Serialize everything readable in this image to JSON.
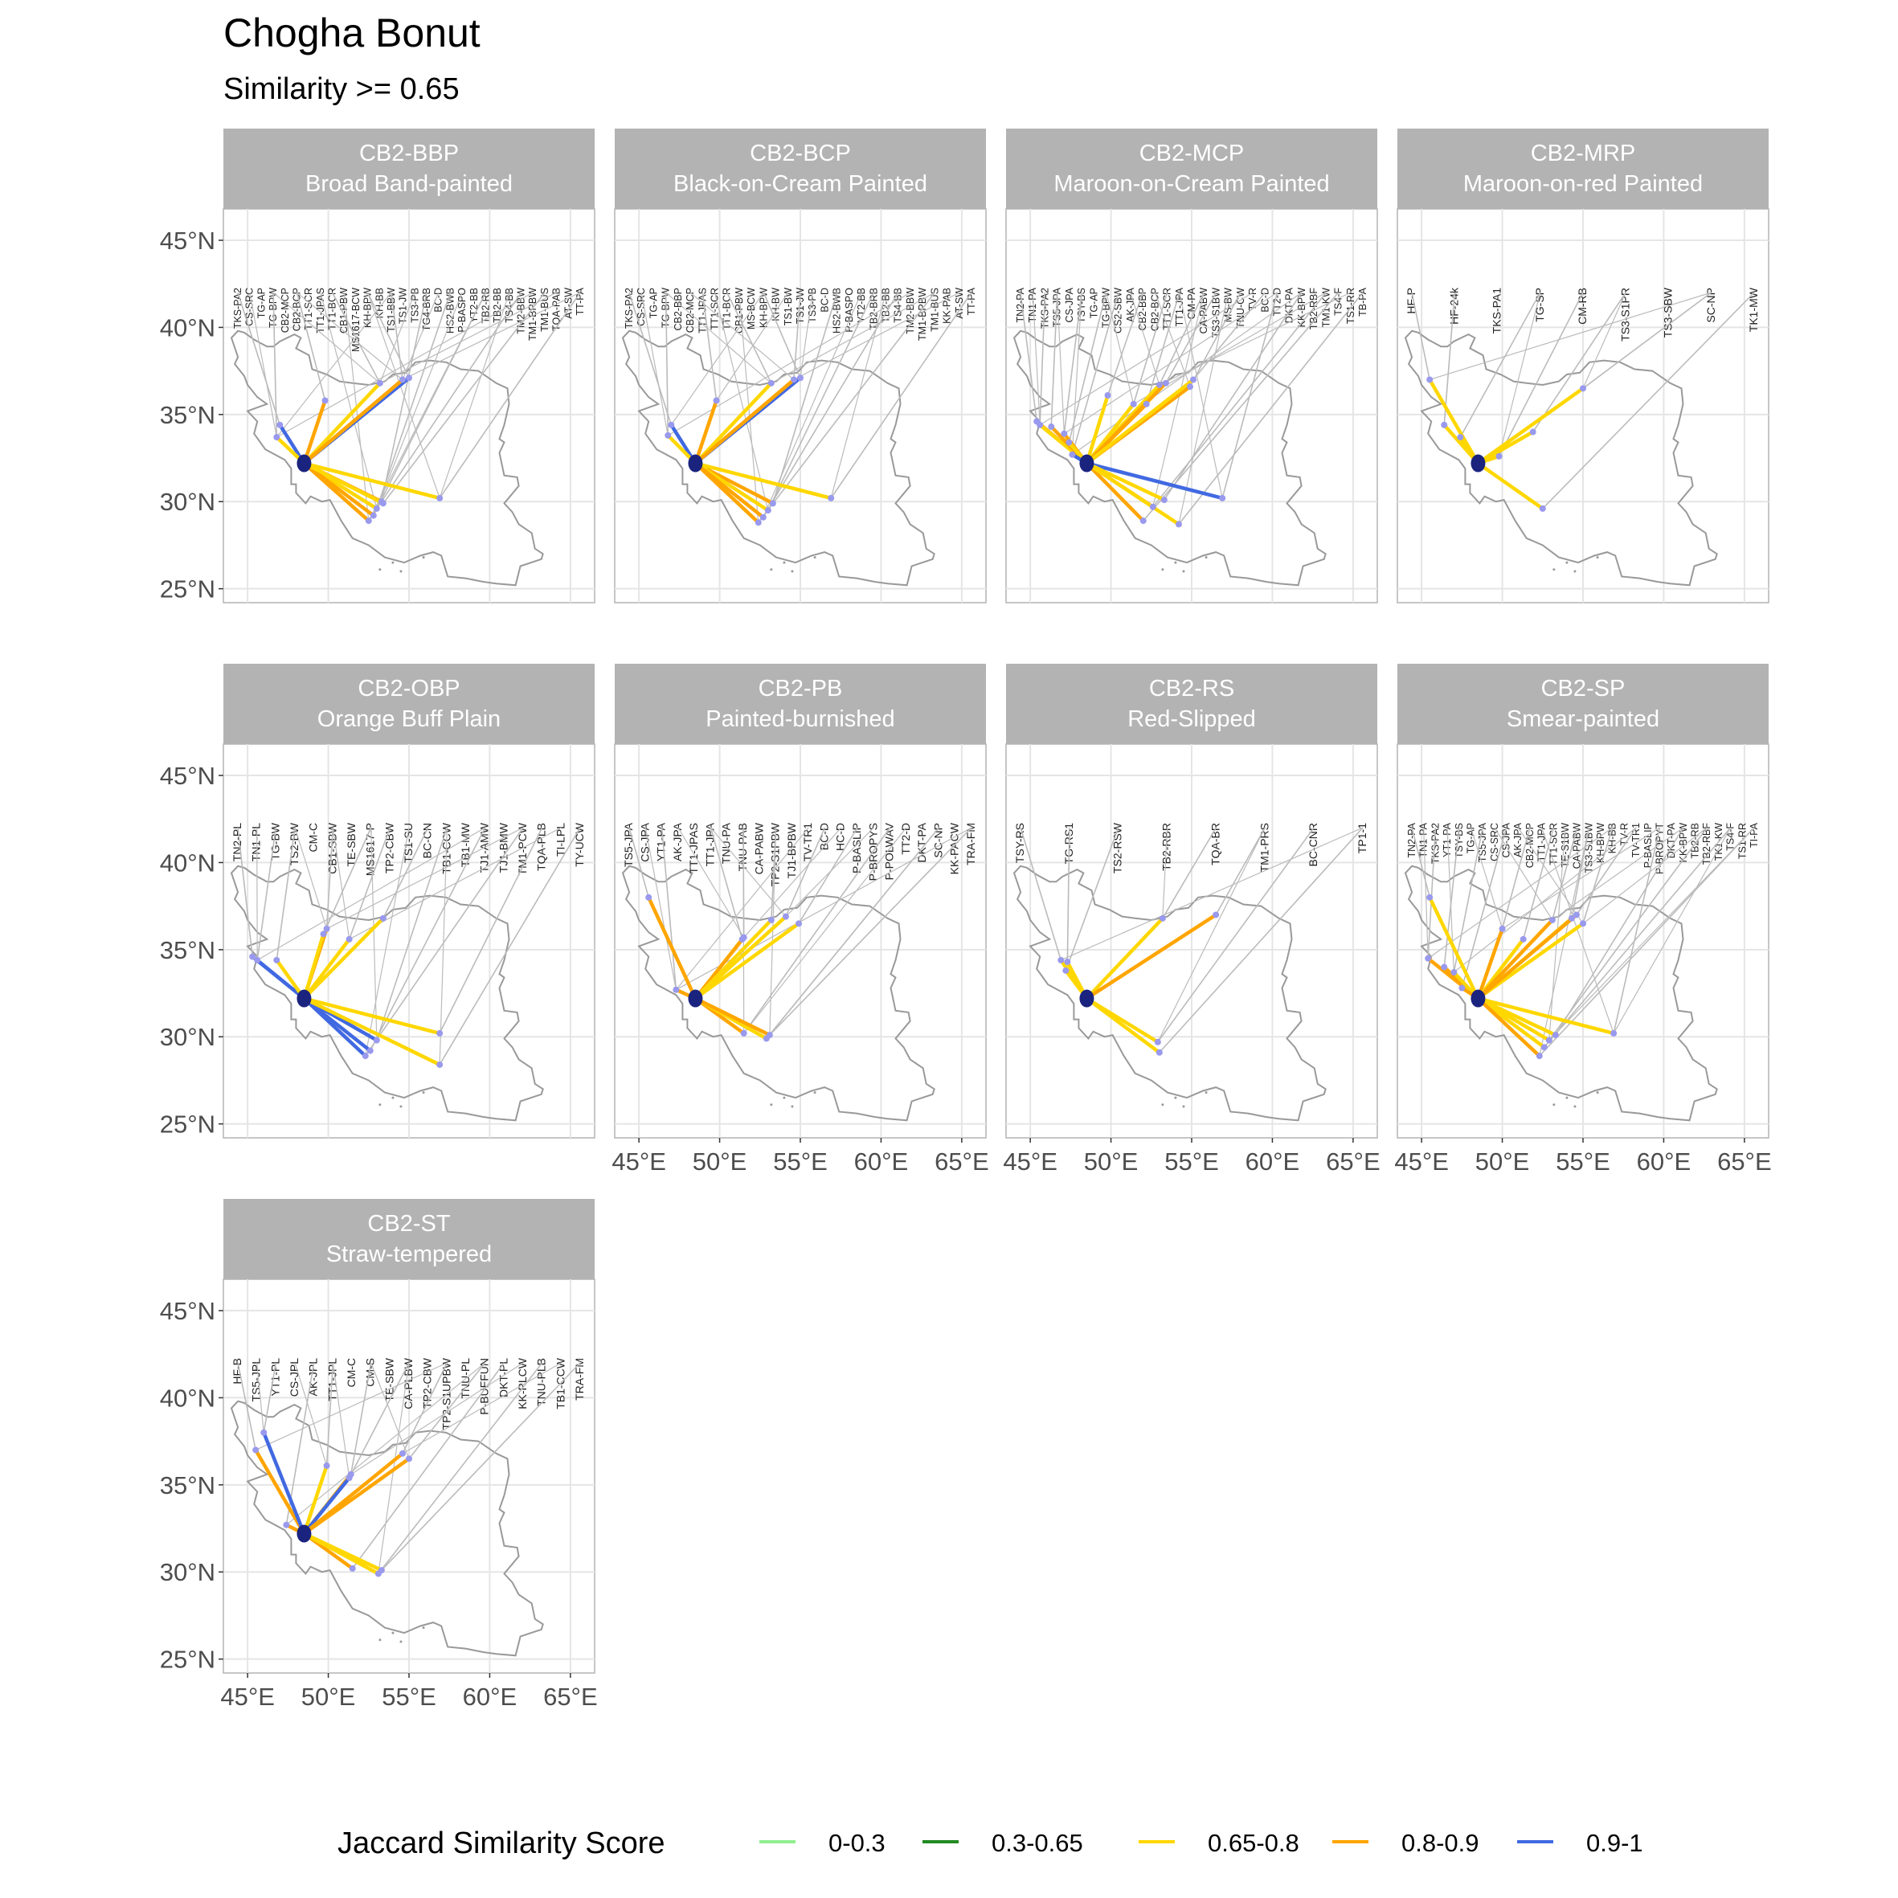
{
  "title": "Chogha Bonut",
  "subtitle": "Similarity >= 0.65",
  "axis": {
    "lon_ticks": [
      {
        "value": 45,
        "label": "45°E"
      },
      {
        "value": 50,
        "label": "50°E"
      },
      {
        "value": 55,
        "label": "55°E"
      },
      {
        "value": 60,
        "label": "60°E"
      },
      {
        "value": 65,
        "label": "65°E"
      }
    ],
    "lat_ticks": [
      {
        "value": 45,
        "label": "45°N"
      },
      {
        "value": 40,
        "label": "40°N"
      },
      {
        "value": 35,
        "label": "35°N"
      },
      {
        "value": 30,
        "label": "30°N"
      },
      {
        "value": 25,
        "label": "25°N"
      }
    ],
    "lon_range": [
      43.5,
      66.5
    ],
    "lat_range": [
      24.2,
      46.8
    ]
  },
  "origin": {
    "name": "Chogha Bonut",
    "lon": 48.5,
    "lat": 32.2
  },
  "legend": {
    "title": "Jaccard Similarity Score",
    "items": [
      {
        "label": "0-0.3",
        "color": "#90EE90"
      },
      {
        "label": "0.3-0.65",
        "color": "#228B22"
      },
      {
        "label": "0.65-0.8",
        "color": "#FFD700"
      },
      {
        "label": "0.8-0.9",
        "color": "#FFA500"
      },
      {
        "label": "0.9-1",
        "color": "#4169E1"
      }
    ]
  },
  "colors": {
    "strip_bg": "#b3b3b3",
    "panel_bg": "#ffffff",
    "grid": "#e5e5e5",
    "outline": "#999999",
    "leader": "#bbbbbb",
    "site": "#9999ee",
    "origin": "#1a237e"
  },
  "chart_data": [
    {
      "code": "CB2-BBP",
      "name": "Broad Band-painted",
      "labels": [
        "TKS-PA2",
        "CS-SRC",
        "TG-AP",
        "TG-BPW",
        "CB2-MCP",
        "CB2-BCP",
        "TT1-SCR",
        "TT1-JPAS",
        "TT1-BCR",
        "CB1-PBW",
        "MS1617-BCW",
        "KH-BPW",
        "KH-BB",
        "TS1-BBW",
        "TS1-JW",
        "TS3-PB",
        "TG4-BRB",
        "BC-D",
        "HS2-BWB",
        "P-BASPO",
        "YT2-BB",
        "TB2-RB",
        "TB2-BB",
        "TS4-BB",
        "TM2-BBW",
        "TM1-BPBW",
        "TM1-BUS",
        "TQA-PAB",
        "AT-SW",
        "TT-PA"
      ],
      "links": [
        {
          "lon": 47.0,
          "lat": 34.4,
          "s": "0.9-1"
        },
        {
          "lon": 46.8,
          "lat": 33.7,
          "s": "0.65-0.8"
        },
        {
          "lon": 49.8,
          "lat": 35.8,
          "s": "0.8-0.9"
        },
        {
          "lon": 53.2,
          "lat": 36.8,
          "s": "0.65-0.8"
        },
        {
          "lon": 55.0,
          "lat": 37.1,
          "s": "0.9-1"
        },
        {
          "lon": 54.6,
          "lat": 37.0,
          "s": "0.8-0.9"
        },
        {
          "lon": 53.3,
          "lat": 30.0,
          "s": "0.8-0.9"
        },
        {
          "lon": 53.0,
          "lat": 29.6,
          "s": "0.65-0.8"
        },
        {
          "lon": 52.8,
          "lat": 29.2,
          "s": "0.8-0.9"
        },
        {
          "lon": 52.5,
          "lat": 28.9,
          "s": "0.8-0.9"
        },
        {
          "lon": 53.4,
          "lat": 29.9,
          "s": "0.65-0.8"
        },
        {
          "lon": 56.9,
          "lat": 30.2,
          "s": "0.65-0.8"
        }
      ]
    },
    {
      "code": "CB2-BCP",
      "name": "Black-on-Cream Painted",
      "labels": [
        "TKS-PA2",
        "CS-SRC",
        "TG-AP",
        "TG-BPW",
        "CB2-BBP",
        "CB2-MCP",
        "TT1-JPAS",
        "TT1-SCR",
        "TT1-BCR",
        "CB1-PBW",
        "MS-BCW",
        "KH-BPW",
        "KH-BW",
        "TS1-BW",
        "TS1-JW",
        "TS3-PB",
        "BC-D",
        "HS2-BWB",
        "P-BASPO",
        "YT2-BB",
        "TB2-BRB",
        "TB2-BB",
        "TS4-BB",
        "TM2-BBW",
        "TM1-BPBW",
        "TM1-BUS",
        "KK-PAB",
        "AT-SW",
        "TT-PA"
      ],
      "links": [
        {
          "lon": 47.0,
          "lat": 34.4,
          "s": "0.9-1"
        },
        {
          "lon": 46.8,
          "lat": 33.8,
          "s": "0.65-0.8"
        },
        {
          "lon": 49.8,
          "lat": 35.8,
          "s": "0.8-0.9"
        },
        {
          "lon": 53.2,
          "lat": 36.8,
          "s": "0.65-0.8"
        },
        {
          "lon": 55.0,
          "lat": 37.1,
          "s": "0.9-1"
        },
        {
          "lon": 54.6,
          "lat": 37.0,
          "s": "0.8-0.9"
        },
        {
          "lon": 53.3,
          "lat": 29.9,
          "s": "0.8-0.9"
        },
        {
          "lon": 53.0,
          "lat": 29.5,
          "s": "0.65-0.8"
        },
        {
          "lon": 52.7,
          "lat": 29.1,
          "s": "0.8-0.9"
        },
        {
          "lon": 52.4,
          "lat": 28.8,
          "s": "0.8-0.9"
        },
        {
          "lon": 56.9,
          "lat": 30.2,
          "s": "0.65-0.8"
        }
      ]
    },
    {
      "code": "CB2-MCP",
      "name": "Maroon-on-Cream Painted",
      "labels": [
        "TN2-PA",
        "TN1-PA",
        "TKS-PA2",
        "TS5-JPA",
        "CS-JPA",
        "TSY-BS",
        "TG-AP",
        "TG-BPW",
        "CS2-SBW",
        "AK-JPA",
        "CB2-BBP",
        "CB2-BCP",
        "TT1-SCR",
        "TT1-JPA",
        "CM-PA",
        "CA-PABW",
        "TS3-S1BW",
        "MS-BW",
        "TNU-CW",
        "TV-R",
        "BC-D",
        "TT2-D",
        "DKT-PA",
        "KK-BPW",
        "TB2-RBF",
        "TM1-KW",
        "TS4-F",
        "TS1-RR",
        "TB-PA"
      ],
      "links": [
        {
          "lon": 45.4,
          "lat": 34.6,
          "s": "0.8-0.9"
        },
        {
          "lon": 45.6,
          "lat": 34.4,
          "s": "0.65-0.8"
        },
        {
          "lon": 46.3,
          "lat": 34.3,
          "s": "0.8-0.9"
        },
        {
          "lon": 47.1,
          "lat": 33.9,
          "s": "0.8-0.9"
        },
        {
          "lon": 47.4,
          "lat": 33.4,
          "s": "0.65-0.8"
        },
        {
          "lon": 47.6,
          "lat": 32.7,
          "s": "0.9-1"
        },
        {
          "lon": 49.8,
          "lat": 36.1,
          "s": "0.65-0.8"
        },
        {
          "lon": 51.4,
          "lat": 35.6,
          "s": "0.65-0.8"
        },
        {
          "lon": 52.2,
          "lat": 35.6,
          "s": "0.8-0.9"
        },
        {
          "lon": 53.0,
          "lat": 36.7,
          "s": "0.65-0.8"
        },
        {
          "lon": 53.4,
          "lat": 36.8,
          "s": "0.8-0.9"
        },
        {
          "lon": 54.9,
          "lat": 36.6,
          "s": "0.8-0.9"
        },
        {
          "lon": 55.1,
          "lat": 37.0,
          "s": "0.65-0.8"
        },
        {
          "lon": 56.9,
          "lat": 30.2,
          "s": "0.9-1"
        },
        {
          "lon": 53.3,
          "lat": 30.1,
          "s": "0.65-0.8"
        },
        {
          "lon": 52.6,
          "lat": 29.7,
          "s": "0.8-0.9"
        },
        {
          "lon": 52.0,
          "lat": 28.9,
          "s": "0.8-0.9"
        },
        {
          "lon": 54.2,
          "lat": 28.7,
          "s": "0.65-0.8"
        }
      ]
    },
    {
      "code": "CB2-MRP",
      "name": "Maroon-on-red Painted",
      "labels": [
        "HF-P",
        "HF-24k",
        "TKS-PA1",
        "TG-SP",
        "CM-RB",
        "TS3-S1PR",
        "TS3-SBW",
        "SC-NP",
        "TK1-MW"
      ],
      "links": [
        {
          "lon": 45.5,
          "lat": 37.0,
          "s": "0.65-0.8"
        },
        {
          "lon": 46.4,
          "lat": 34.4,
          "s": "0.65-0.8"
        },
        {
          "lon": 47.4,
          "lat": 33.7,
          "s": "0.65-0.8"
        },
        {
          "lon": 49.8,
          "lat": 32.6,
          "s": "0.65-0.8"
        },
        {
          "lon": 51.9,
          "lat": 34.0,
          "s": "0.65-0.8"
        },
        {
          "lon": 55.0,
          "lat": 36.5,
          "s": "0.65-0.8"
        },
        {
          "lon": 52.5,
          "lat": 29.6,
          "s": "0.65-0.8"
        }
      ]
    },
    {
      "code": "CB2-OBP",
      "name": "Orange Buff Plain",
      "labels": [
        "TN2-PL",
        "TN1-PL",
        "TG-BW",
        "TS2-BW",
        "CM-C",
        "CB1-SBW",
        "TE-SBW",
        "MS1617-P",
        "TP2-CBW",
        "TS1-SU",
        "BC-CN",
        "TB1-CCW",
        "TB1-MW",
        "TJ1-AMW",
        "TJ1-BMW",
        "TM1-PCW",
        "TQA-PLB",
        "TI-LPL",
        "TY-UCW"
      ],
      "links": [
        {
          "lon": 45.3,
          "lat": 34.6,
          "s": "0.9-1"
        },
        {
          "lon": 45.6,
          "lat": 34.4,
          "s": "0.9-1"
        },
        {
          "lon": 46.8,
          "lat": 34.4,
          "s": "0.65-0.8"
        },
        {
          "lon": 49.9,
          "lat": 36.2,
          "s": "0.8-0.9"
        },
        {
          "lon": 49.7,
          "lat": 35.9,
          "s": "0.65-0.8"
        },
        {
          "lon": 51.3,
          "lat": 35.6,
          "s": "0.65-0.8"
        },
        {
          "lon": 53.4,
          "lat": 36.8,
          "s": "0.65-0.8"
        },
        {
          "lon": 53.0,
          "lat": 29.8,
          "s": "0.9-1"
        },
        {
          "lon": 52.6,
          "lat": 29.2,
          "s": "0.9-1"
        },
        {
          "lon": 52.3,
          "lat": 28.9,
          "s": "0.9-1"
        },
        {
          "lon": 56.9,
          "lat": 30.2,
          "s": "0.65-0.8"
        },
        {
          "lon": 56.9,
          "lat": 28.4,
          "s": "0.65-0.8"
        }
      ]
    },
    {
      "code": "CB2-PB",
      "name": "Painted-burnished",
      "labels": [
        "TS5-JPA",
        "CS-JPA",
        "YT1-PA",
        "AK-JPA",
        "TT1-JPAS",
        "TT1-JPA",
        "TNU-PA",
        "TNU-PAB",
        "CA-PABW",
        "TP2-S1PBW",
        "TJ1-BPBW",
        "TV-TR1",
        "BC-D",
        "HC-D",
        "P-BASLIP",
        "P-BROPYS",
        "P-POLWAV",
        "TT2-D",
        "DKT-PA",
        "SC-NP",
        "KK-PACW",
        "TRA-FM"
      ],
      "links": [
        {
          "lon": 45.6,
          "lat": 38.0,
          "s": "0.8-0.9"
        },
        {
          "lon": 47.3,
          "lat": 32.7,
          "s": "0.8-0.9"
        },
        {
          "lon": 51.4,
          "lat": 35.6,
          "s": "0.65-0.8"
        },
        {
          "lon": 51.5,
          "lat": 35.7,
          "s": "0.8-0.9"
        },
        {
          "lon": 53.2,
          "lat": 36.7,
          "s": "0.65-0.8"
        },
        {
          "lon": 54.1,
          "lat": 36.9,
          "s": "0.65-0.8"
        },
        {
          "lon": 54.9,
          "lat": 36.5,
          "s": "0.65-0.8"
        },
        {
          "lon": 51.5,
          "lat": 30.2,
          "s": "0.8-0.9"
        },
        {
          "lon": 52.9,
          "lat": 29.9,
          "s": "0.65-0.8"
        },
        {
          "lon": 53.1,
          "lat": 30.1,
          "s": "0.8-0.9"
        }
      ]
    },
    {
      "code": "CB2-RS",
      "name": "Red-Slipped",
      "labels": [
        "TSY-RS",
        "TG-RS1",
        "TS2-RSW",
        "TB2-RBR",
        "TQA-BR",
        "TM1-PRS",
        "BC-CNR",
        "TP1-1"
      ],
      "links": [
        {
          "lon": 46.9,
          "lat": 34.4,
          "s": "0.65-0.8"
        },
        {
          "lon": 47.3,
          "lat": 34.3,
          "s": "0.65-0.8"
        },
        {
          "lon": 47.2,
          "lat": 33.8,
          "s": "0.65-0.8"
        },
        {
          "lon": 53.2,
          "lat": 36.8,
          "s": "0.65-0.8"
        },
        {
          "lon": 56.5,
          "lat": 37.0,
          "s": "0.8-0.9"
        },
        {
          "lon": 52.9,
          "lat": 29.7,
          "s": "0.65-0.8"
        },
        {
          "lon": 53.0,
          "lat": 29.1,
          "s": "0.65-0.8"
        }
      ]
    },
    {
      "code": "CB2-SP",
      "name": "Smear-painted",
      "labels": [
        "TN2-PA",
        "TN1-PA",
        "TKS-PA2",
        "YT1-PA",
        "TSY-BS",
        "TG-AP",
        "TS5-JPA",
        "CS-SRC",
        "CS-JPA",
        "AK-JPA",
        "CB2-MCP",
        "TT1-JPA",
        "TT1-SCR",
        "TE-S1BW",
        "CA-PABW",
        "TS3-S1BW",
        "KH-BPW",
        "KH-BB",
        "TV-R",
        "TV-TR1",
        "P-BASLIP",
        "P-BROPYT",
        "DKT-PA",
        "KK-BPW",
        "TB2-RB",
        "TB2-RBF",
        "TK1-KW",
        "TS4-F",
        "TS1-RR",
        "TI-PA"
      ],
      "links": [
        {
          "lon": 45.5,
          "lat": 38.0,
          "s": "0.65-0.8"
        },
        {
          "lon": 45.4,
          "lat": 34.5,
          "s": "0.8-0.9"
        },
        {
          "lon": 46.4,
          "lat": 34.0,
          "s": "0.8-0.9"
        },
        {
          "lon": 47.0,
          "lat": 33.7,
          "s": "0.65-0.8"
        },
        {
          "lon": 47.5,
          "lat": 32.8,
          "s": "0.8-0.9"
        },
        {
          "lon": 50.0,
          "lat": 36.2,
          "s": "0.8-0.9"
        },
        {
          "lon": 51.3,
          "lat": 35.6,
          "s": "0.65-0.8"
        },
        {
          "lon": 53.1,
          "lat": 36.7,
          "s": "0.8-0.9"
        },
        {
          "lon": 54.3,
          "lat": 36.8,
          "s": "0.65-0.8"
        },
        {
          "lon": 55.0,
          "lat": 36.5,
          "s": "0.65-0.8"
        },
        {
          "lon": 54.6,
          "lat": 37.0,
          "s": "0.8-0.9"
        },
        {
          "lon": 56.9,
          "lat": 30.2,
          "s": "0.65-0.8"
        },
        {
          "lon": 53.3,
          "lat": 30.1,
          "s": "0.65-0.8"
        },
        {
          "lon": 52.9,
          "lat": 29.8,
          "s": "0.65-0.8"
        },
        {
          "lon": 52.6,
          "lat": 29.4,
          "s": "0.65-0.8"
        },
        {
          "lon": 52.3,
          "lat": 28.9,
          "s": "0.8-0.9"
        }
      ]
    },
    {
      "code": "CB2-ST",
      "name": "Straw-tempered",
      "labels": [
        "HF-B",
        "TS5-JPL",
        "YT1-PL",
        "CS-JPL",
        "AK-JPL",
        "TT1-JPL",
        "CM-C",
        "CM-S",
        "TE-SBW",
        "CA-PLBW",
        "TP2-CBW",
        "TP2-S1UPBW",
        "TNU-PL",
        "P-BUFFUN",
        "DKT-PL",
        "KK-PLCW",
        "TNU-PLB",
        "TB1-CCW",
        "TRA-FM"
      ],
      "links": [
        {
          "lon": 45.5,
          "lat": 37.0,
          "s": "0.8-0.9"
        },
        {
          "lon": 46.0,
          "lat": 38.0,
          "s": "0.9-1"
        },
        {
          "lon": 47.4,
          "lat": 32.7,
          "s": "0.8-0.9"
        },
        {
          "lon": 49.9,
          "lat": 36.1,
          "s": "0.65-0.8"
        },
        {
          "lon": 51.4,
          "lat": 35.6,
          "s": "0.8-0.9"
        },
        {
          "lon": 51.3,
          "lat": 35.4,
          "s": "0.9-1"
        },
        {
          "lon": 54.6,
          "lat": 36.8,
          "s": "0.8-0.9"
        },
        {
          "lon": 55.0,
          "lat": 36.5,
          "s": "0.8-0.9"
        },
        {
          "lon": 51.5,
          "lat": 30.2,
          "s": "0.8-0.9"
        },
        {
          "lon": 53.1,
          "lat": 29.9,
          "s": "0.65-0.8"
        },
        {
          "lon": 53.3,
          "lat": 30.1,
          "s": "0.65-0.8"
        }
      ]
    }
  ]
}
